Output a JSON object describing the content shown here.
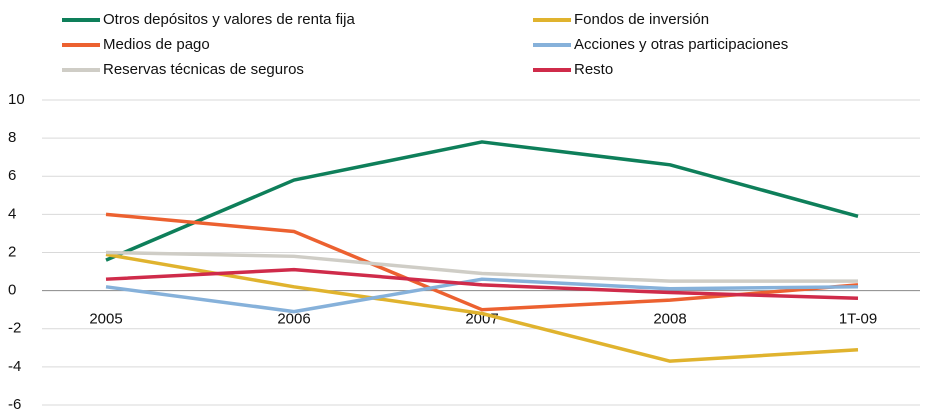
{
  "chart_data": {
    "type": "line",
    "categories": [
      "2005",
      "2006",
      "2007",
      "2008",
      "1T-09"
    ],
    "series": [
      {
        "name": "Otros depósitos y valores de renta fija",
        "color": "#0e7f5a",
        "values": [
          1.6,
          5.8,
          7.8,
          6.6,
          3.9
        ]
      },
      {
        "name": "Fondos de inversión",
        "color": "#e0b32e",
        "values": [
          1.9,
          0.2,
          -1.2,
          -3.7,
          -3.1
        ]
      },
      {
        "name": "Medios de pago",
        "color": "#ec6130",
        "values": [
          4.0,
          3.1,
          -1.0,
          -0.5,
          0.3
        ]
      },
      {
        "name": "Acciones y otras participaciones",
        "color": "#86b1da",
        "values": [
          0.2,
          -1.1,
          0.6,
          0.1,
          0.2
        ]
      },
      {
        "name": "Reservas técnicas de seguros",
        "color": "#cfcdc6",
        "values": [
          2.0,
          1.8,
          0.9,
          0.5,
          0.5
        ]
      },
      {
        "name": "Resto",
        "color": "#cf2b4a",
        "values": [
          0.6,
          1.1,
          0.3,
          -0.1,
          -0.4
        ]
      }
    ],
    "ylim": [
      -6,
      10
    ],
    "yticks": [
      -6,
      -4,
      -2,
      0,
      2,
      4,
      6,
      8,
      10
    ],
    "grid": true
  }
}
